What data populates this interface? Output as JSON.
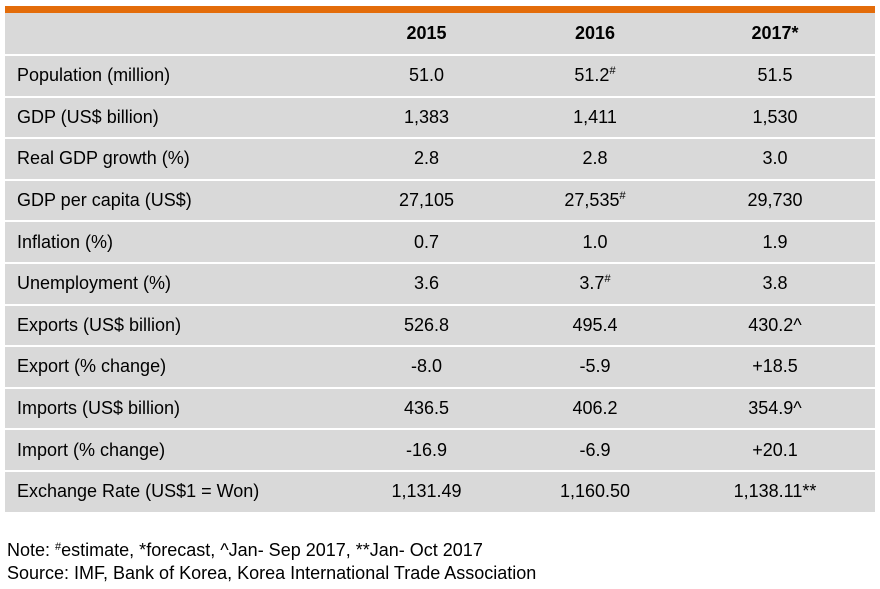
{
  "table": {
    "header": [
      "",
      "2015",
      "2016",
      "2017*"
    ],
    "rows": [
      {
        "label": "Population (million)",
        "cells": [
          {
            "v": "51.0"
          },
          {
            "v": "51.2",
            "mark": "#"
          },
          {
            "v": "51.5"
          }
        ]
      },
      {
        "label": "GDP (US$ billion)",
        "cells": [
          {
            "v": "1,383"
          },
          {
            "v": "1,411"
          },
          {
            "v": "1,530"
          }
        ]
      },
      {
        "label": "Real GDP growth (%)",
        "cells": [
          {
            "v": "2.8"
          },
          {
            "v": "2.8"
          },
          {
            "v": "3.0"
          }
        ]
      },
      {
        "label": "GDP per capita (US$)",
        "cells": [
          {
            "v": "27,105"
          },
          {
            "v": "27,535",
            "mark": "#"
          },
          {
            "v": "29,730"
          }
        ]
      },
      {
        "label": "Inflation (%)",
        "cells": [
          {
            "v": "0.7"
          },
          {
            "v": "1.0"
          },
          {
            "v": "1.9"
          }
        ]
      },
      {
        "label": "Unemployment (%)",
        "cells": [
          {
            "v": "3.6"
          },
          {
            "v": "3.7",
            "mark": "#"
          },
          {
            "v": "3.8"
          }
        ]
      },
      {
        "label": "Exports (US$ billion)",
        "cells": [
          {
            "v": "526.8"
          },
          {
            "v": "495.4"
          },
          {
            "v": "430.2^"
          }
        ]
      },
      {
        "label": "Export (% change)",
        "cells": [
          {
            "v": "-8.0"
          },
          {
            "v": "-5.9"
          },
          {
            "v": "+18.5"
          }
        ]
      },
      {
        "label": "Imports (US$ billion)",
        "cells": [
          {
            "v": "436.5"
          },
          {
            "v": "406.2"
          },
          {
            "v": "354.9^"
          }
        ]
      },
      {
        "label": "Import (% change)",
        "cells": [
          {
            "v": "-16.9"
          },
          {
            "v": "-6.9"
          },
          {
            "v": "+20.1"
          }
        ]
      },
      {
        "label": "Exchange Rate (US$1 = Won)",
        "cells": [
          {
            "v": "1,131.49"
          },
          {
            "v": "1,160.50"
          },
          {
            "v": "1,138.11**"
          }
        ]
      }
    ]
  },
  "notes": {
    "note_prefix": "Note: ",
    "note_mark": "#",
    "note_text": "estimate, *forecast, ^Jan- Sep 2017, **Jan- Oct 2017",
    "source": "Source: IMF, Bank of Korea, Korea International Trade Association"
  },
  "colors": {
    "accent_bar": "#e36c0a",
    "row_fill": "#d9d9d9"
  }
}
